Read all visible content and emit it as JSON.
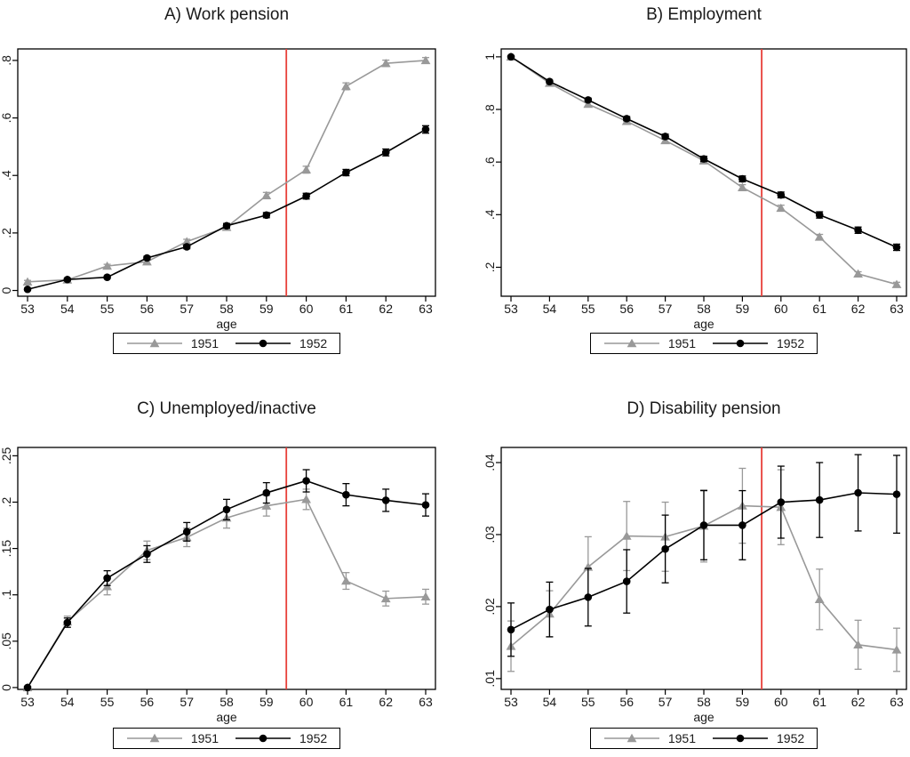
{
  "figure": {
    "background": "#ffffff",
    "text_color": "#1a1a1a",
    "axis_color": "#000000"
  },
  "chart_data": [
    {
      "type": "line",
      "title": "A) Work pension",
      "xlabel": "age",
      "x": [
        53,
        54,
        55,
        56,
        57,
        58,
        59,
        60,
        61,
        62,
        63
      ],
      "ylim": [
        -0.02,
        0.84
      ],
      "ytick_values": [
        0,
        0.2,
        0.4,
        0.6,
        0.8
      ],
      "ytick_labels": [
        "0",
        ".2",
        ".4",
        ".6",
        ".8"
      ],
      "grid": false,
      "legend_position": "bottom",
      "ref_line_x": 59.5,
      "ref_line_color": "#e8403a",
      "series": [
        {
          "name": "1951",
          "color": "#999999",
          "marker": "triangle",
          "values": [
            0.03,
            0.037,
            0.085,
            0.1,
            0.17,
            0.22,
            0.33,
            0.42,
            0.71,
            0.79,
            0.8
          ],
          "errors": [
            0.005,
            0.004,
            0.006,
            0.006,
            0.008,
            0.009,
            0.011,
            0.012,
            0.012,
            0.011,
            0.01
          ]
        },
        {
          "name": "1952",
          "color": "#000000",
          "marker": "circle",
          "values": [
            0.004,
            0.038,
            0.046,
            0.113,
            0.152,
            0.225,
            0.262,
            0.328,
            0.41,
            0.48,
            0.56
          ],
          "errors": [
            0.002,
            0.004,
            0.004,
            0.006,
            0.007,
            0.008,
            0.009,
            0.01,
            0.011,
            0.012,
            0.013
          ]
        }
      ]
    },
    {
      "type": "line",
      "title": "B) Employment",
      "xlabel": "age",
      "x": [
        53,
        54,
        55,
        56,
        57,
        58,
        59,
        60,
        61,
        62,
        63
      ],
      "ylim": [
        0.09,
        1.03
      ],
      "ytick_values": [
        0.2,
        0.4,
        0.6,
        0.8,
        1.0
      ],
      "ytick_labels": [
        ".2",
        ".4",
        ".6",
        ".8",
        "1"
      ],
      "grid": false,
      "legend_position": "bottom",
      "ref_line_x": 59.5,
      "ref_line_color": "#e8403a",
      "series": [
        {
          "name": "1951",
          "color": "#999999",
          "marker": "triangle",
          "values": [
            1.0,
            0.9,
            0.82,
            0.755,
            0.682,
            0.605,
            0.503,
            0.425,
            0.315,
            0.175,
            0.135
          ],
          "errors": [
            0.002,
            0.006,
            0.008,
            0.009,
            0.01,
            0.01,
            0.011,
            0.011,
            0.01,
            0.008,
            0.008
          ]
        },
        {
          "name": "1952",
          "color": "#000000",
          "marker": "circle",
          "values": [
            1.0,
            0.906,
            0.836,
            0.765,
            0.697,
            0.612,
            0.536,
            0.475,
            0.399,
            0.341,
            0.276
          ],
          "errors": [
            0.002,
            0.005,
            0.007,
            0.008,
            0.009,
            0.01,
            0.011,
            0.011,
            0.012,
            0.012,
            0.012
          ]
        }
      ]
    },
    {
      "type": "line",
      "title": "C) Unemployed/inactive",
      "xlabel": "age",
      "x": [
        53,
        54,
        55,
        56,
        57,
        58,
        59,
        60,
        61,
        62,
        63
      ],
      "ylim": [
        -0.002,
        0.259
      ],
      "ytick_values": [
        0,
        0.05,
        0.1,
        0.15,
        0.2,
        0.25
      ],
      "ytick_labels": [
        "0",
        ".05",
        ".1",
        ".15",
        ".2",
        ".25"
      ],
      "grid": false,
      "legend_position": "bottom",
      "ref_line_x": 59.5,
      "ref_line_color": "#e8403a",
      "series": [
        {
          "name": "1951",
          "color": "#999999",
          "marker": "triangle",
          "values": [
            0.0,
            0.071,
            0.109,
            0.148,
            0.162,
            0.183,
            0.196,
            0.203,
            0.115,
            0.096,
            0.098
          ],
          "errors": [
            0.001,
            0.006,
            0.009,
            0.01,
            0.01,
            0.011,
            0.011,
            0.011,
            0.009,
            0.008,
            0.008
          ]
        },
        {
          "name": "1952",
          "color": "#000000",
          "marker": "circle",
          "values": [
            0.0,
            0.07,
            0.118,
            0.144,
            0.168,
            0.192,
            0.21,
            0.223,
            0.208,
            0.202,
            0.197
          ],
          "errors": [
            0.001,
            0.005,
            0.008,
            0.009,
            0.01,
            0.011,
            0.011,
            0.012,
            0.012,
            0.012,
            0.012
          ]
        }
      ]
    },
    {
      "type": "line",
      "title": "D) Disability pension",
      "xlabel": "age",
      "x": [
        53,
        54,
        55,
        56,
        57,
        58,
        59,
        60,
        61,
        62,
        63
      ],
      "ylim": [
        0.0085,
        0.0421
      ],
      "ytick_values": [
        0.01,
        0.02,
        0.03,
        0.04
      ],
      "ytick_labels": [
        ".01",
        ".02",
        ".03",
        ".04"
      ],
      "grid": false,
      "legend_position": "bottom",
      "ref_line_x": 59.5,
      "ref_line_color": "#e8403a",
      "series": [
        {
          "name": "1951",
          "color": "#999999",
          "marker": "triangle",
          "values": [
            0.0145,
            0.019,
            0.0255,
            0.0298,
            0.0297,
            0.0312,
            0.034,
            0.0338,
            0.021,
            0.0147,
            0.014
          ],
          "errors": [
            0.0035,
            0.0032,
            0.0042,
            0.0048,
            0.0048,
            0.005,
            0.0052,
            0.0052,
            0.0042,
            0.0034,
            0.003
          ]
        },
        {
          "name": "1952",
          "color": "#000000",
          "marker": "circle",
          "values": [
            0.0168,
            0.0196,
            0.0213,
            0.0235,
            0.028,
            0.0313,
            0.0313,
            0.0345,
            0.0348,
            0.0358,
            0.0356
          ],
          "errors": [
            0.0037,
            0.0038,
            0.004,
            0.0044,
            0.0047,
            0.0048,
            0.0048,
            0.005,
            0.0052,
            0.0053,
            0.0054
          ]
        }
      ]
    }
  ]
}
